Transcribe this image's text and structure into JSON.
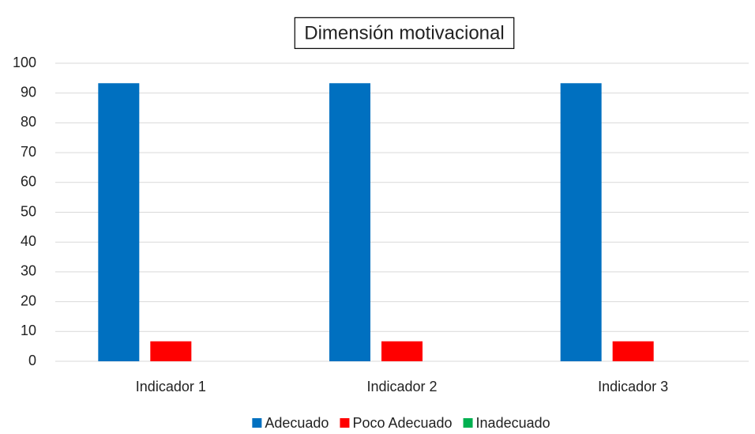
{
  "chart_data": {
    "type": "bar",
    "title": "Dimensión motivacional",
    "categories": [
      "Indicador 1",
      "Indicador 2",
      "Indicador 3"
    ],
    "series": [
      {
        "name": "Adecuado",
        "color": "#0070c0",
        "values": [
          93.3,
          93.3,
          93.3
        ]
      },
      {
        "name": "Poco Adecuado",
        "color": "#ff0000",
        "values": [
          6.7,
          6.7,
          6.7
        ]
      },
      {
        "name": "Inadecuado",
        "color": "#00b050",
        "values": [
          0,
          0,
          0
        ]
      }
    ],
    "ylim": [
      0,
      100
    ],
    "yticks": [
      0,
      10,
      20,
      30,
      40,
      50,
      60,
      70,
      80,
      90,
      100
    ],
    "grid": true,
    "legend": "bottom"
  }
}
